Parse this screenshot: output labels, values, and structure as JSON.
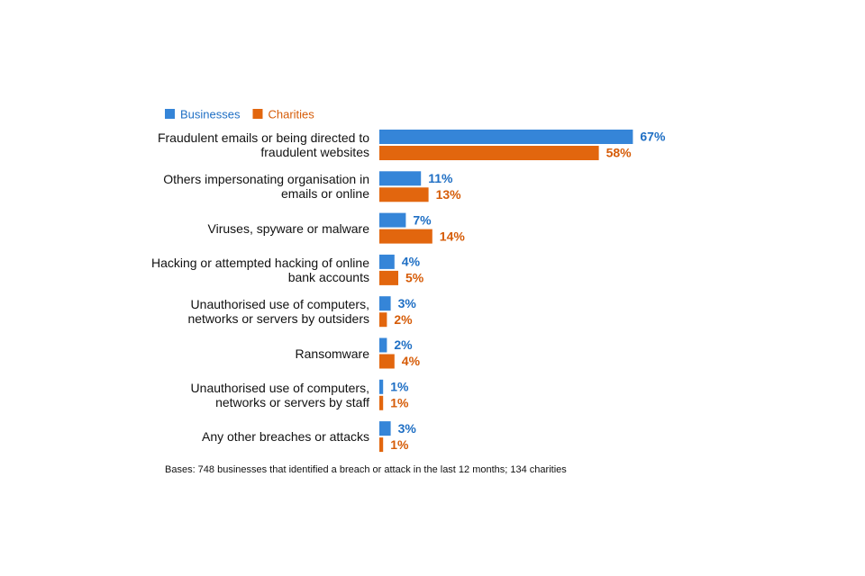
{
  "chart_data": {
    "type": "bar",
    "orientation": "horizontal",
    "categories": [
      "Fraudulent emails or being directed to fraudulent websites",
      "Others impersonating organisation in emails or online",
      "Viruses, spyware or malware",
      "Hacking or attempted hacking of online bank accounts",
      "Unauthorised use of computers, networks or servers by outsiders",
      "Ransomware",
      "Unauthorised use of computers, networks or servers by staff",
      "Any other breaches or attacks"
    ],
    "series": [
      {
        "name": "Businesses",
        "color": "#3585d8",
        "label_color": "#1f6fc4",
        "values": [
          67,
          11,
          7,
          4,
          3,
          2,
          1,
          3
        ],
        "value_labels": [
          "67%",
          "11%",
          "7%",
          "4%",
          "3%",
          "2%",
          "1%",
          "3%"
        ]
      },
      {
        "name": "Charities",
        "color": "#e2660e",
        "label_color": "#d65c08",
        "values": [
          58,
          13,
          14,
          5,
          2,
          4,
          1,
          1
        ],
        "value_labels": [
          "58%",
          "13%",
          "14%",
          "5%",
          "2%",
          "4%",
          "1%",
          "1%"
        ]
      }
    ],
    "legend": "top-left",
    "footnote": "Bases: 748 businesses that identified a breach or attack in the last 12 months; 134 charities"
  }
}
